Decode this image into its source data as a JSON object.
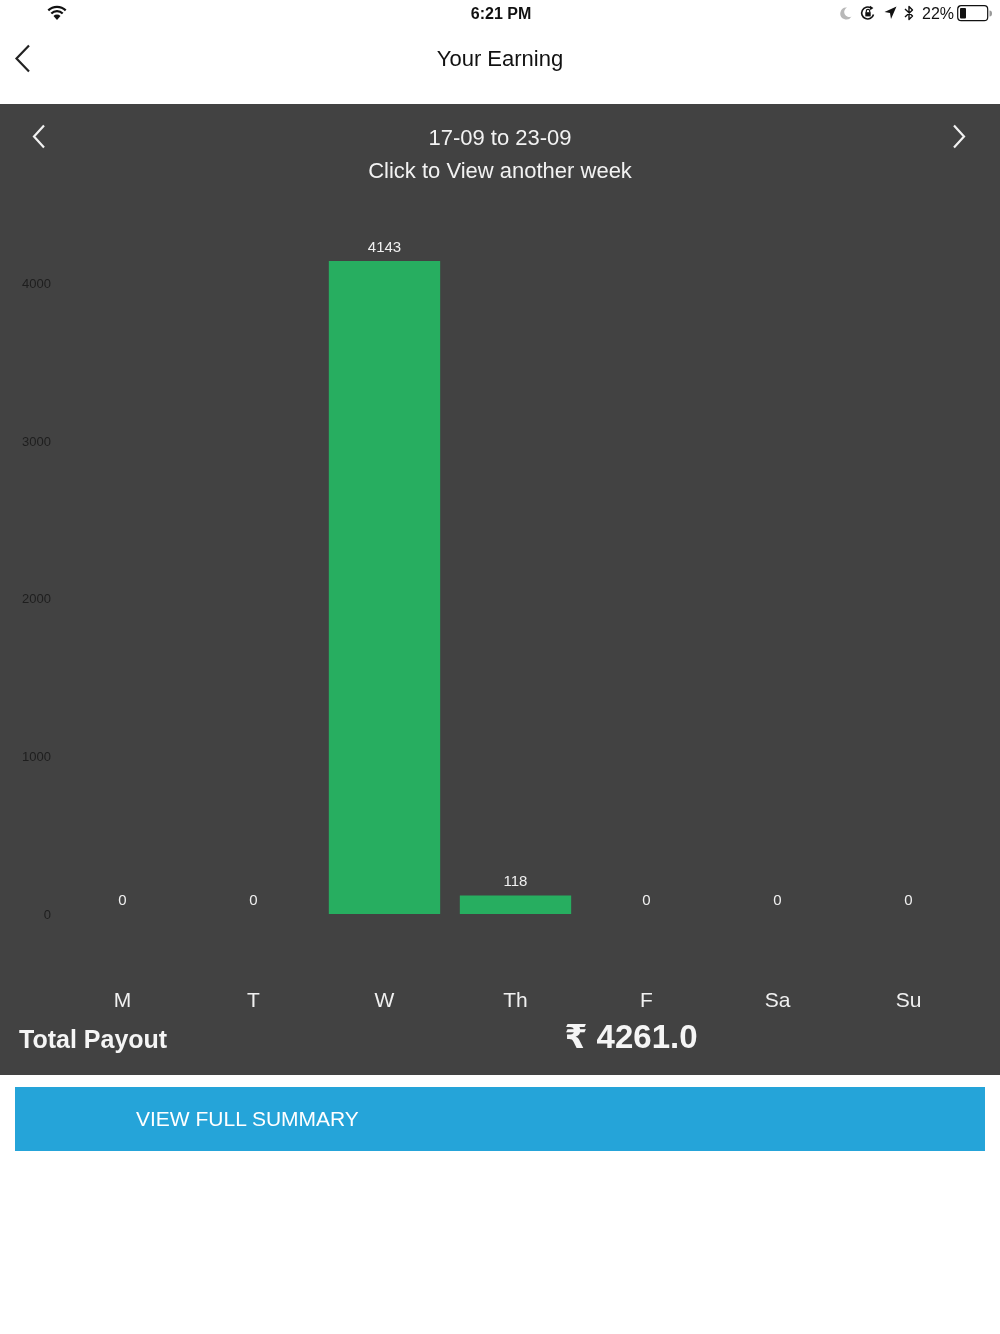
{
  "chart_data": {
    "type": "bar",
    "title": "17-09 to 23-09",
    "subtitle": "Click to View another week",
    "categories": [
      "M",
      "T",
      "W",
      "Th",
      "F",
      "Sa",
      "Su"
    ],
    "values": [
      0,
      0,
      4143,
      118,
      0,
      0,
      0
    ],
    "color": "#27ae60",
    "ylim": [
      0,
      4143
    ],
    "yticks": [
      0,
      1000,
      2000,
      3000,
      4000
    ],
    "data_labels": true,
    "grid": false,
    "annotations": [
      "6:21 PM",
      "22%",
      "Your Earning",
      "Total Payout",
      "₹ 4261.0",
      "VIEW FULL SUMMARY"
    ]
  }
}
